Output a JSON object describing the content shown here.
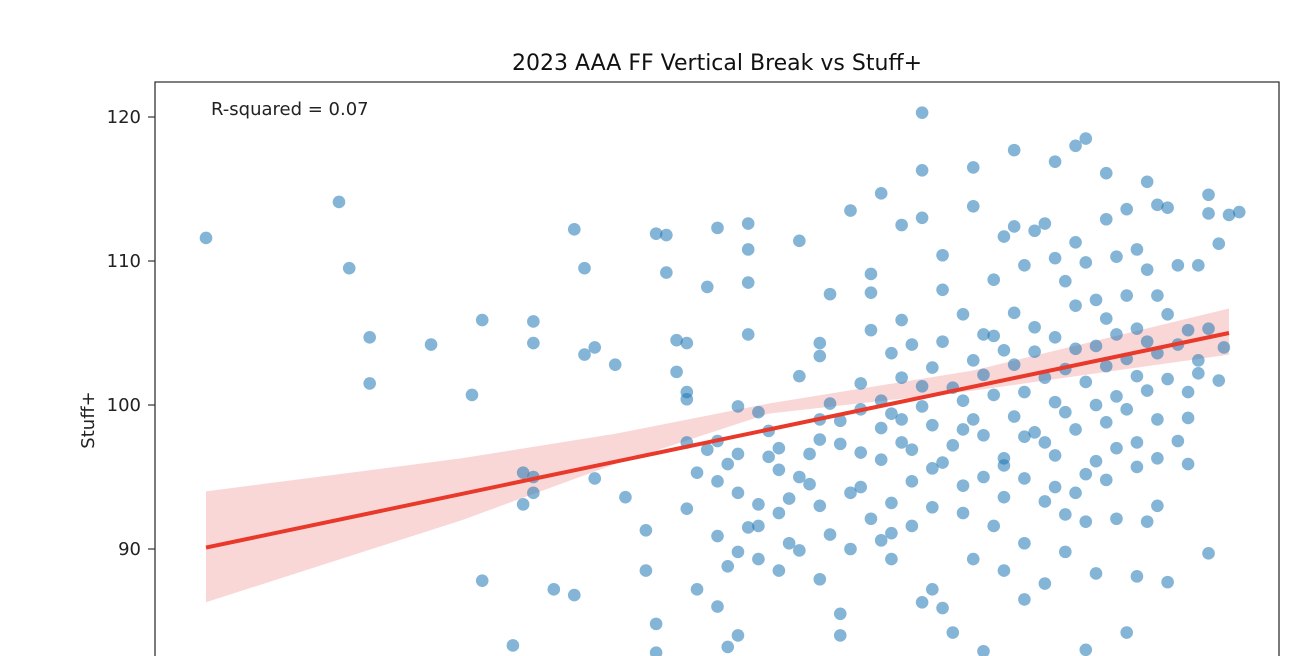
{
  "chart_data": {
    "type": "scatter",
    "title": "2023 AAA FF Vertical Break vs Stuff+",
    "xlabel": "",
    "ylabel": "Stuff+",
    "ylim": [
      83.3,
      121.7
    ],
    "xlim": [
      0,
      1
    ],
    "yticks": [
      90,
      100,
      110,
      120
    ],
    "annotation": "R-squared = 0.07",
    "grid": false,
    "colors": {
      "points": "#1f77b4",
      "fit_line": "#e8392b",
      "confidence_band": "#f4a7a7"
    },
    "fit_line": {
      "start": [
        0.0,
        90.1
      ],
      "end": [
        1.0,
        105.0
      ]
    },
    "confidence_band": {
      "upper": [
        [
          0.0,
          94.0
        ],
        [
          0.25,
          96.3
        ],
        [
          0.4,
          98.0
        ],
        [
          0.55,
          100.1
        ],
        [
          0.75,
          102.4
        ],
        [
          1.0,
          106.7
        ]
      ],
      "lower": [
        [
          0.0,
          86.3
        ],
        [
          0.25,
          92.0
        ],
        [
          0.4,
          95.9
        ],
        [
          0.55,
          99.4
        ],
        [
          0.75,
          101.0
        ],
        [
          1.0,
          103.5
        ]
      ]
    },
    "points": [
      [
        0.0,
        111.6
      ],
      [
        0.13,
        114.1
      ],
      [
        0.14,
        109.5
      ],
      [
        0.16,
        104.7
      ],
      [
        0.16,
        101.5
      ],
      [
        0.22,
        104.2
      ],
      [
        0.26,
        100.7
      ],
      [
        0.27,
        105.9
      ],
      [
        0.27,
        87.8
      ],
      [
        0.3,
        83.3
      ],
      [
        0.31,
        95.3
      ],
      [
        0.31,
        93.1
      ],
      [
        0.32,
        93.9
      ],
      [
        0.32,
        95.0
      ],
      [
        0.32,
        104.3
      ],
      [
        0.32,
        105.8
      ],
      [
        0.34,
        87.2
      ],
      [
        0.36,
        86.8
      ],
      [
        0.36,
        112.2
      ],
      [
        0.37,
        109.5
      ],
      [
        0.37,
        103.5
      ],
      [
        0.38,
        104.0
      ],
      [
        0.38,
        94.9
      ],
      [
        0.4,
        102.8
      ],
      [
        0.41,
        93.6
      ],
      [
        0.43,
        88.5
      ],
      [
        0.43,
        91.3
      ],
      [
        0.44,
        84.8
      ],
      [
        0.44,
        82.8
      ],
      [
        0.44,
        111.9
      ],
      [
        0.45,
        109.2
      ],
      [
        0.45,
        111.8
      ],
      [
        0.46,
        102.3
      ],
      [
        0.46,
        104.5
      ],
      [
        0.47,
        104.3
      ],
      [
        0.47,
        100.4
      ],
      [
        0.47,
        100.9
      ],
      [
        0.47,
        97.4
      ],
      [
        0.47,
        92.8
      ],
      [
        0.48,
        87.2
      ],
      [
        0.48,
        95.3
      ],
      [
        0.49,
        96.9
      ],
      [
        0.49,
        108.2
      ],
      [
        0.5,
        112.3
      ],
      [
        0.5,
        97.5
      ],
      [
        0.5,
        94.7
      ],
      [
        0.5,
        90.9
      ],
      [
        0.51,
        83.2
      ],
      [
        0.51,
        88.8
      ],
      [
        0.51,
        95.9
      ],
      [
        0.52,
        99.9
      ],
      [
        0.52,
        93.9
      ],
      [
        0.52,
        96.6
      ],
      [
        0.52,
        84.0
      ],
      [
        0.53,
        110.8
      ],
      [
        0.53,
        108.5
      ],
      [
        0.53,
        112.6
      ],
      [
        0.53,
        104.9
      ],
      [
        0.53,
        91.5
      ],
      [
        0.54,
        93.1
      ],
      [
        0.54,
        89.3
      ],
      [
        0.54,
        99.5
      ],
      [
        0.55,
        96.4
      ],
      [
        0.55,
        98.2
      ],
      [
        0.56,
        88.5
      ],
      [
        0.56,
        95.5
      ],
      [
        0.56,
        97.0
      ],
      [
        0.57,
        93.5
      ],
      [
        0.57,
        90.4
      ],
      [
        0.58,
        102.0
      ],
      [
        0.58,
        111.4
      ],
      [
        0.58,
        89.9
      ],
      [
        0.59,
        94.5
      ],
      [
        0.59,
        96.6
      ],
      [
        0.6,
        97.6
      ],
      [
        0.6,
        87.9
      ],
      [
        0.6,
        104.3
      ],
      [
        0.6,
        103.4
      ],
      [
        0.61,
        107.7
      ],
      [
        0.61,
        100.1
      ],
      [
        0.61,
        91.0
      ],
      [
        0.62,
        85.5
      ],
      [
        0.62,
        84.0
      ],
      [
        0.62,
        98.9
      ],
      [
        0.63,
        90.0
      ],
      [
        0.63,
        93.9
      ],
      [
        0.63,
        113.5
      ],
      [
        0.64,
        94.3
      ],
      [
        0.64,
        96.7
      ],
      [
        0.64,
        101.5
      ],
      [
        0.65,
        109.1
      ],
      [
        0.65,
        107.8
      ],
      [
        0.65,
        105.2
      ],
      [
        0.65,
        92.1
      ],
      [
        0.66,
        96.2
      ],
      [
        0.66,
        90.6
      ],
      [
        0.66,
        114.7
      ],
      [
        0.66,
        100.3
      ],
      [
        0.67,
        99.4
      ],
      [
        0.67,
        103.6
      ],
      [
        0.67,
        93.2
      ],
      [
        0.67,
        89.3
      ],
      [
        0.68,
        97.4
      ],
      [
        0.68,
        112.5
      ],
      [
        0.68,
        105.9
      ],
      [
        0.68,
        101.9
      ],
      [
        0.69,
        91.6
      ],
      [
        0.69,
        94.7
      ],
      [
        0.69,
        104.2
      ],
      [
        0.69,
        96.9
      ],
      [
        0.7,
        120.3
      ],
      [
        0.7,
        116.3
      ],
      [
        0.7,
        113.0
      ],
      [
        0.7,
        99.9
      ],
      [
        0.7,
        86.3
      ],
      [
        0.71,
        87.2
      ],
      [
        0.71,
        92.9
      ],
      [
        0.71,
        95.6
      ],
      [
        0.71,
        98.6
      ],
      [
        0.71,
        102.6
      ],
      [
        0.72,
        108.0
      ],
      [
        0.72,
        110.4
      ],
      [
        0.72,
        104.4
      ],
      [
        0.72,
        85.9
      ],
      [
        0.73,
        84.2
      ],
      [
        0.73,
        101.2
      ],
      [
        0.73,
        97.2
      ],
      [
        0.74,
        94.4
      ],
      [
        0.74,
        92.5
      ],
      [
        0.74,
        100.3
      ],
      [
        0.74,
        106.3
      ],
      [
        0.75,
        103.1
      ],
      [
        0.75,
        99.0
      ],
      [
        0.75,
        116.5
      ],
      [
        0.75,
        113.8
      ],
      [
        0.75,
        89.3
      ],
      [
        0.76,
        82.9
      ],
      [
        0.76,
        97.9
      ],
      [
        0.76,
        95.0
      ],
      [
        0.76,
        102.1
      ],
      [
        0.77,
        108.7
      ],
      [
        0.77,
        104.8
      ],
      [
        0.77,
        100.7
      ],
      [
        0.77,
        91.6
      ],
      [
        0.78,
        111.7
      ],
      [
        0.78,
        103.8
      ],
      [
        0.78,
        96.3
      ],
      [
        0.78,
        88.5
      ],
      [
        0.78,
        93.6
      ],
      [
        0.79,
        117.7
      ],
      [
        0.79,
        112.4
      ],
      [
        0.79,
        102.8
      ],
      [
        0.79,
        99.2
      ],
      [
        0.79,
        106.4
      ],
      [
        0.8,
        109.7
      ],
      [
        0.8,
        100.9
      ],
      [
        0.8,
        94.9
      ],
      [
        0.8,
        90.4
      ],
      [
        0.8,
        86.5
      ],
      [
        0.81,
        112.1
      ],
      [
        0.81,
        103.7
      ],
      [
        0.81,
        98.1
      ],
      [
        0.81,
        105.4
      ],
      [
        0.82,
        112.6
      ],
      [
        0.82,
        101.9
      ],
      [
        0.82,
        97.4
      ],
      [
        0.82,
        93.3
      ],
      [
        0.82,
        87.6
      ],
      [
        0.83,
        116.9
      ],
      [
        0.83,
        110.2
      ],
      [
        0.83,
        104.7
      ],
      [
        0.83,
        100.2
      ],
      [
        0.83,
        96.5
      ],
      [
        0.84,
        108.6
      ],
      [
        0.84,
        102.5
      ],
      [
        0.84,
        99.5
      ],
      [
        0.84,
        92.4
      ],
      [
        0.84,
        89.8
      ],
      [
        0.85,
        118.0
      ],
      [
        0.85,
        111.3
      ],
      [
        0.85,
        106.9
      ],
      [
        0.85,
        103.9
      ],
      [
        0.85,
        98.3
      ],
      [
        0.86,
        118.5
      ],
      [
        0.86,
        109.9
      ],
      [
        0.86,
        101.6
      ],
      [
        0.86,
        95.2
      ],
      [
        0.86,
        91.9
      ],
      [
        0.86,
        83.0
      ],
      [
        0.87,
        107.3
      ],
      [
        0.87,
        104.1
      ],
      [
        0.87,
        100.0
      ],
      [
        0.87,
        96.1
      ],
      [
        0.87,
        88.3
      ],
      [
        0.88,
        116.1
      ],
      [
        0.88,
        112.9
      ],
      [
        0.88,
        106.0
      ],
      [
        0.88,
        102.7
      ],
      [
        0.88,
        98.8
      ],
      [
        0.89,
        110.3
      ],
      [
        0.89,
        104.9
      ],
      [
        0.89,
        100.6
      ],
      [
        0.89,
        97.0
      ],
      [
        0.89,
        92.1
      ],
      [
        0.9,
        113.6
      ],
      [
        0.9,
        107.6
      ],
      [
        0.9,
        103.2
      ],
      [
        0.9,
        99.7
      ],
      [
        0.9,
        84.2
      ],
      [
        0.91,
        110.8
      ],
      [
        0.91,
        105.3
      ],
      [
        0.91,
        102.0
      ],
      [
        0.91,
        95.7
      ],
      [
        0.91,
        88.1
      ],
      [
        0.92,
        115.5
      ],
      [
        0.92,
        109.4
      ],
      [
        0.92,
        104.4
      ],
      [
        0.92,
        101.0
      ],
      [
        0.92,
        91.9
      ],
      [
        0.93,
        113.9
      ],
      [
        0.93,
        107.6
      ],
      [
        0.93,
        103.6
      ],
      [
        0.93,
        99.0
      ],
      [
        0.93,
        96.3
      ],
      [
        0.94,
        113.7
      ],
      [
        0.94,
        106.3
      ],
      [
        0.94,
        101.8
      ],
      [
        0.94,
        87.7
      ],
      [
        0.95,
        109.7
      ],
      [
        0.95,
        104.2
      ],
      [
        0.95,
        97.5
      ],
      [
        0.96,
        105.2
      ],
      [
        0.96,
        100.9
      ],
      [
        0.96,
        95.9
      ],
      [
        0.97,
        109.7
      ],
      [
        0.97,
        103.1
      ],
      [
        0.97,
        102.2
      ],
      [
        0.98,
        114.6
      ],
      [
        0.98,
        113.3
      ],
      [
        0.98,
        89.7
      ],
      [
        0.98,
        105.3
      ],
      [
        0.99,
        111.2
      ],
      [
        0.99,
        101.7
      ],
      [
        0.96,
        99.1
      ],
      [
        0.93,
        93.0
      ],
      [
        0.91,
        97.4
      ],
      [
        0.88,
        94.8
      ],
      [
        0.85,
        93.9
      ],
      [
        0.83,
        94.3
      ],
      [
        0.8,
        97.8
      ],
      [
        0.78,
        95.8
      ],
      [
        0.76,
        104.9
      ],
      [
        0.74,
        98.3
      ],
      [
        0.72,
        96.0
      ],
      [
        0.7,
        101.3
      ],
      [
        0.68,
        99.0
      ],
      [
        0.66,
        98.4
      ],
      [
        0.64,
        99.7
      ],
      [
        0.62,
        97.3
      ],
      [
        0.6,
        99.0
      ],
      [
        1.0,
        113.2
      ],
      [
        1.01,
        113.4
      ],
      [
        0.995,
        104.0
      ],
      [
        0.58,
        95.0
      ],
      [
        0.56,
        92.5
      ],
      [
        0.54,
        91.6
      ],
      [
        0.52,
        89.8
      ],
      [
        0.5,
        86.0
      ],
      [
        0.6,
        93.0
      ],
      [
        0.67,
        91.1
      ]
    ]
  }
}
